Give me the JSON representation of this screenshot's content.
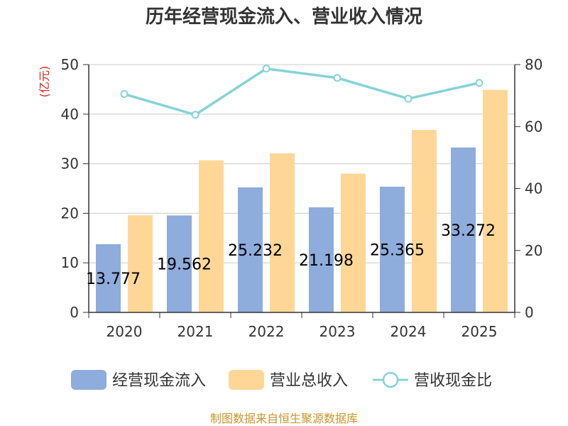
{
  "chart_data": {
    "type": "bar",
    "title": "历年经营现金流入、营业收入情况",
    "categories": [
      "2020",
      "2021",
      "2022",
      "2023",
      "2024",
      "2025"
    ],
    "series": [
      {
        "name": "经营现金流入",
        "type": "bar",
        "axis": "left",
        "color": "#8eacdc",
        "values": [
          13.777,
          19.562,
          25.232,
          21.198,
          25.365,
          33.272
        ]
      },
      {
        "name": "营业总收入",
        "type": "bar",
        "axis": "left",
        "color": "#fed797",
        "values": [
          19.6,
          30.7,
          32.1,
          28.0,
          36.8,
          44.9
        ]
      },
      {
        "name": "营收现金比",
        "type": "line",
        "axis": "right",
        "color": "#86d3d6",
        "values": [
          70.5,
          63.8,
          78.7,
          75.7,
          69.0,
          74.1
        ]
      }
    ],
    "left_axis": {
      "unit": "(亿元)",
      "ylim": [
        0,
        50
      ],
      "ticks": [
        "0",
        "10",
        "20",
        "30",
        "40",
        "50"
      ]
    },
    "right_axis": {
      "unit": "%",
      "ylim": [
        0,
        80
      ],
      "ticks": [
        "0",
        "20",
        "40",
        "60",
        "80"
      ]
    },
    "grid": true,
    "legend": "bottom"
  },
  "source": "制图数据来自恒生聚源数据库"
}
